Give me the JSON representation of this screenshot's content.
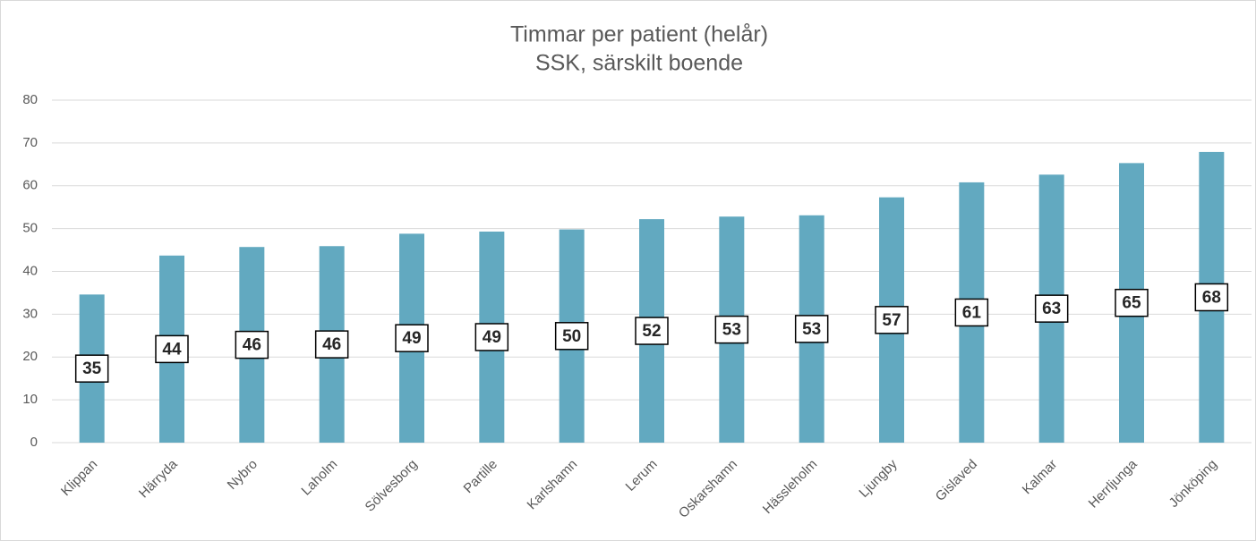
{
  "chart_data": {
    "type": "bar",
    "title": "Timmar per patient (helår)",
    "subtitle": "SSK, särskilt boende",
    "categories": [
      "Klippan",
      "Härryda",
      "Nybro",
      "Laholm",
      "Sölvesborg",
      "Partille",
      "Karlshamn",
      "Lerum",
      "Oskarshamn",
      "Hässleholm",
      "Ljungby",
      "Gislaved",
      "Kalmar",
      "Herrljunga",
      "Jönköping"
    ],
    "values": [
      34.6,
      43.7,
      45.7,
      45.9,
      48.8,
      49.3,
      49.8,
      52.2,
      52.8,
      53.1,
      57.3,
      60.8,
      62.6,
      65.3,
      67.9
    ],
    "value_labels": [
      "35",
      "44",
      "46",
      "46",
      "49",
      "49",
      "50",
      "52",
      "53",
      "53",
      "57",
      "61",
      "63",
      "65",
      "68"
    ],
    "color": "#62a9c0",
    "ylim": [
      0,
      80
    ],
    "yticks": [
      0,
      10,
      20,
      30,
      40,
      50,
      60,
      70,
      80
    ],
    "grid": true
  }
}
